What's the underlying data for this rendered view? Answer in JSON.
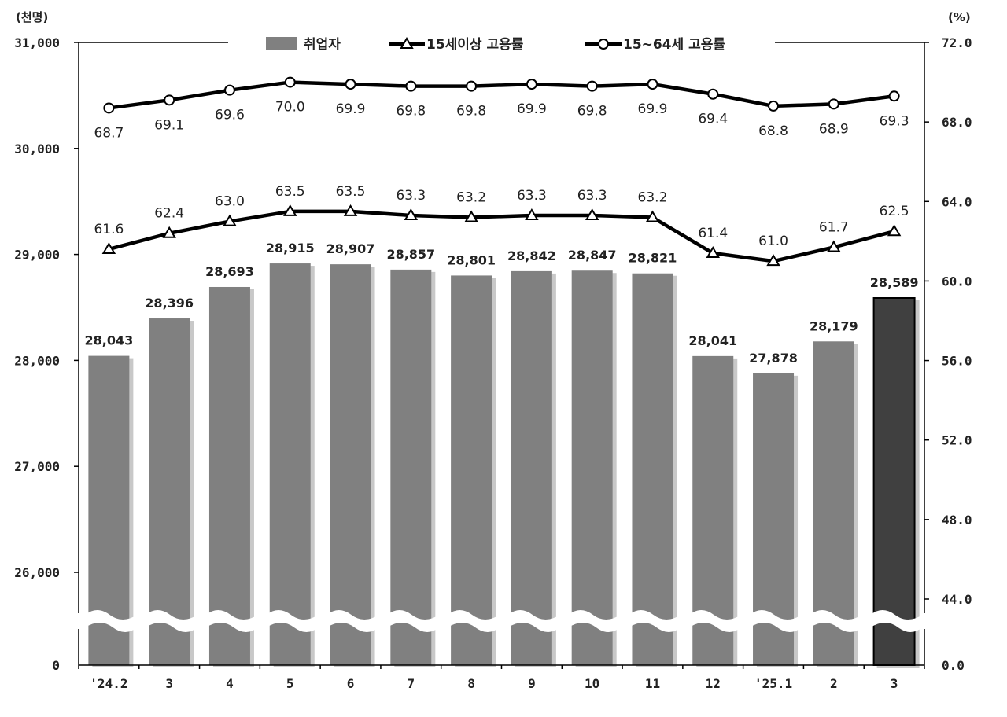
{
  "chart_data": {
    "type": "bar",
    "categories": [
      "'24.2",
      "3",
      "4",
      "5",
      "6",
      "7",
      "8",
      "9",
      "10",
      "11",
      "12",
      "'25.1",
      "2",
      "3"
    ],
    "left_unit": "(천명)",
    "right_unit": "(%)",
    "left_axis": {
      "ylim": [
        26000,
        31000
      ],
      "ticks": [
        "31,000",
        "30,000",
        "29,000",
        "28,000",
        "27,000",
        "26,000"
      ],
      "broken_axis_bottom_label": "0"
    },
    "right_axis": {
      "ylim": [
        44.0,
        72.0
      ],
      "ticks": [
        "72.0",
        "68.0",
        "64.0",
        "60.0",
        "56.0",
        "52.0",
        "48.0",
        "44.0"
      ],
      "broken_axis_bottom_label": "0.0"
    },
    "series": [
      {
        "name": "취업자",
        "kind": "bar",
        "axis": "left",
        "values": [
          28043,
          28396,
          28693,
          28915,
          28907,
          28857,
          28801,
          28842,
          28847,
          28821,
          28041,
          27878,
          28179,
          28589
        ],
        "labels": [
          "28,043",
          "28,396",
          "28,693",
          "28,915",
          "28,907",
          "28,857",
          "28,801",
          "28,842",
          "28,847",
          "28,821",
          "28,041",
          "27,878",
          "28,179",
          "28,589"
        ],
        "color": "#808080",
        "highlight_last_color": "#404040"
      },
      {
        "name": "15세이상 고용률",
        "kind": "line",
        "marker": "triangle",
        "axis": "right",
        "values": [
          61.6,
          62.4,
          63.0,
          63.5,
          63.5,
          63.3,
          63.2,
          63.3,
          63.3,
          63.2,
          61.4,
          61.0,
          61.7,
          62.5
        ],
        "labels": [
          "61.6",
          "62.4",
          "63.0",
          "63.5",
          "63.5",
          "63.3",
          "63.2",
          "63.3",
          "63.3",
          "63.2",
          "61.4",
          "61.0",
          "61.7",
          "62.5"
        ],
        "color": "#000000"
      },
      {
        "name": "15~64세 고용률",
        "kind": "line",
        "marker": "circle",
        "axis": "right",
        "values": [
          68.7,
          69.1,
          69.6,
          70.0,
          69.9,
          69.8,
          69.8,
          69.9,
          69.8,
          69.9,
          69.4,
          68.8,
          68.9,
          69.3
        ],
        "labels": [
          "68.7",
          "69.1",
          "69.6",
          "70.0",
          "69.9",
          "69.8",
          "69.8",
          "69.9",
          "69.8",
          "69.9",
          "69.4",
          "68.8",
          "68.9",
          "69.3"
        ],
        "color": "#000000"
      }
    ],
    "legend_position": "top-center",
    "grid": false
  }
}
